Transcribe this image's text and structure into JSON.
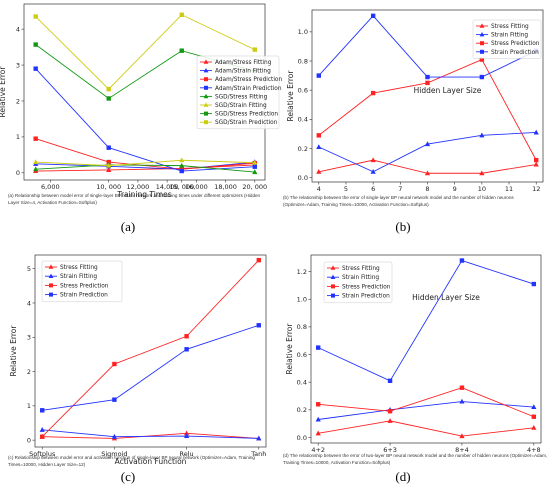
{
  "chart_data": [
    {
      "type": "line",
      "xlabel": "Training Times",
      "ylabel": "Relative Error",
      "x": [
        5000,
        10000,
        15000,
        20000
      ],
      "xticks": [
        "6,000",
        "10, 000",
        "12,000",
        "14,000",
        "15, 000",
        "16,000",
        "18,000",
        "20, 000"
      ],
      "xtick_values": [
        6000,
        10000,
        12000,
        14000,
        15000,
        16000,
        18000,
        20000
      ],
      "ylim": [
        -0.2,
        4.7
      ],
      "yticks": [
        0,
        1,
        2,
        3,
        4
      ],
      "legend_position": "right",
      "series": [
        {
          "name": "Adam/Stress Fitting",
          "marker": "triangle",
          "color": "#ff2222",
          "values": [
            0.05,
            0.08,
            0.12,
            0.22
          ]
        },
        {
          "name": "Adam/Strain Fitting",
          "marker": "triangle",
          "color": "#2233ff",
          "values": [
            0.25,
            0.18,
            0.1,
            0.3
          ]
        },
        {
          "name": "Adam/Stress Prediction",
          "marker": "square",
          "color": "#ff2222",
          "values": [
            0.95,
            0.3,
            0.1,
            0.27
          ]
        },
        {
          "name": "Adam/Strain Prediction",
          "marker": "square",
          "color": "#2233ff",
          "values": [
            2.9,
            0.7,
            0.05,
            0.17
          ]
        },
        {
          "name": "SGD/Stress Fitting",
          "marker": "triangle",
          "color": "#119911",
          "values": [
            0.1,
            0.22,
            0.2,
            0.02
          ]
        },
        {
          "name": "SGD/Strain Fitting",
          "marker": "triangle",
          "color": "#cccc11",
          "values": [
            0.3,
            0.2,
            0.35,
            0.28
          ]
        },
        {
          "name": "SGD/Stress Prediction",
          "marker": "square",
          "color": "#119911",
          "values": [
            3.57,
            2.07,
            3.4,
            2.83
          ]
        },
        {
          "name": "SGD/Strain Prediction",
          "marker": "square",
          "color": "#cccc11",
          "values": [
            4.35,
            2.33,
            4.4,
            3.43
          ]
        }
      ],
      "caption": "(a) Relationship between model error of single-layer BP neural network and training times under different optimizers (Hidden Layer Size=4, Activation Function=Softplus)",
      "panel_label": "(a)"
    },
    {
      "type": "line",
      "xlabel": "Hidden Layer Size",
      "ylabel": "Relative Error",
      "x": [
        4,
        6,
        8,
        10,
        12
      ],
      "xticks": [
        "4",
        "5",
        "6",
        "7",
        "8",
        "9",
        "10",
        "11",
        "12"
      ],
      "xtick_values": [
        4,
        5,
        6,
        7,
        8,
        9,
        10,
        11,
        12
      ],
      "ylim": [
        -0.03,
        1.15
      ],
      "yticks": [
        "0.0",
        "0.2",
        "0.4",
        "0.6",
        "0.8",
        "1.0"
      ],
      "ytick_values": [
        0,
        0.2,
        0.4,
        0.6,
        0.8,
        1.0
      ],
      "legend_position": "top-right",
      "series": [
        {
          "name": "Stress Fitting",
          "marker": "triangle",
          "color": "#ff2222",
          "values": [
            0.04,
            0.12,
            0.03,
            0.03,
            0.09
          ]
        },
        {
          "name": "Strain Fitting",
          "marker": "triangle",
          "color": "#2233ff",
          "values": [
            0.21,
            0.04,
            0.23,
            0.29,
            0.31
          ]
        },
        {
          "name": "Stress Prediction",
          "marker": "square",
          "color": "#ff2222",
          "values": [
            0.29,
            0.58,
            0.65,
            0.81,
            0.12
          ]
        },
        {
          "name": "Strain Prediction",
          "marker": "square",
          "color": "#2233ff",
          "values": [
            0.7,
            1.11,
            0.69,
            0.69,
            0.87
          ]
        }
      ],
      "caption": "(b) The relationship between the error of single-layer BP neural network model and the number of hidden neurons (Optimizer=Adam, Training Times=10000, Activation Function=Softplus)",
      "panel_label": "(b)"
    },
    {
      "type": "line",
      "xlabel": "Activation Function",
      "ylabel": "Relative Error",
      "categories": [
        "Softplus",
        "Sigmoid",
        "Relu",
        "Tanh"
      ],
      "ylim": [
        -0.2,
        5.4
      ],
      "yticks": [
        0,
        1,
        2,
        3,
        4,
        5
      ],
      "legend_position": "top-left",
      "series": [
        {
          "name": "Stress Fitting",
          "marker": "triangle",
          "color": "#ff2222",
          "values": [
            0.1,
            0.05,
            0.2,
            0.05
          ]
        },
        {
          "name": "Strain Fitting",
          "marker": "triangle",
          "color": "#2233ff",
          "values": [
            0.3,
            0.1,
            0.12,
            0.05
          ]
        },
        {
          "name": "Stress Prediction",
          "marker": "square",
          "color": "#ff2222",
          "values": [
            0.1,
            2.22,
            3.03,
            5.25
          ]
        },
        {
          "name": "Strain Prediction",
          "marker": "square",
          "color": "#2233ff",
          "values": [
            0.87,
            1.18,
            2.65,
            3.35
          ]
        }
      ],
      "caption": "(c) Relationship between model error and activation function of single-layer BP neural network (Optimizer=Adam, Training Times=10000, Hidden Layer Size=12)",
      "panel_label": "(c)"
    },
    {
      "type": "line",
      "xlabel": "Hidden Layer Size",
      "ylabel": "Relative Error",
      "categories": [
        "4+2",
        "6+3",
        "8+4",
        "4+8"
      ],
      "ylim": [
        -0.04,
        1.32
      ],
      "yticks": [
        "0.0",
        "0.2",
        "0.4",
        "0.6",
        "0.8",
        "1.0",
        "1.2"
      ],
      "ytick_values": [
        0,
        0.2,
        0.4,
        0.6,
        0.8,
        1.0,
        1.2
      ],
      "legend_position": "top-left",
      "series": [
        {
          "name": "Stress Fitting",
          "marker": "triangle",
          "color": "#ff2222",
          "values": [
            0.03,
            0.12,
            0.01,
            0.07
          ]
        },
        {
          "name": "Strain Fitting",
          "marker": "triangle",
          "color": "#2233ff",
          "values": [
            0.13,
            0.2,
            0.26,
            0.22
          ]
        },
        {
          "name": "Stress Prediction",
          "marker": "square",
          "color": "#ff2222",
          "values": [
            0.24,
            0.19,
            0.36,
            0.15
          ]
        },
        {
          "name": "Strain Prediction",
          "marker": "square",
          "color": "#2233ff",
          "values": [
            0.65,
            0.41,
            1.28,
            1.11
          ]
        }
      ],
      "caption": "(d) The relationship between the error of two-layer BP neural network model and the number of hidden neurons (Optimizer=Adam, Training Times=10000, Activation Function=Softplus)",
      "panel_label": "(d)"
    }
  ]
}
